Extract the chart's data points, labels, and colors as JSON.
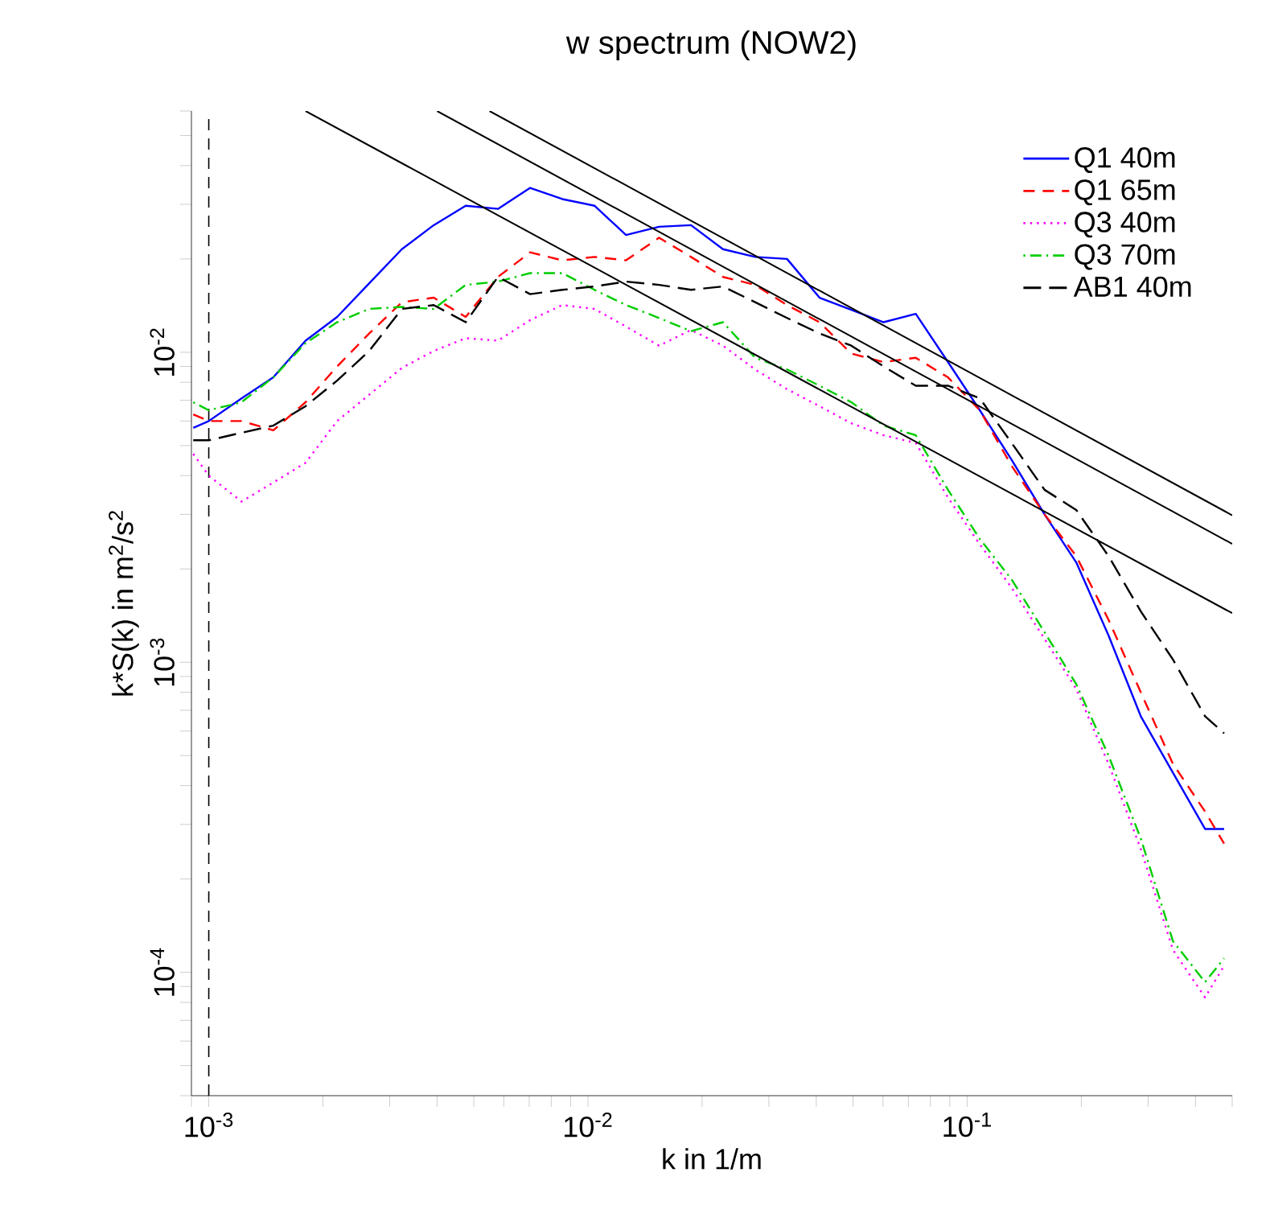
{
  "chart_data": {
    "type": "line",
    "title": "w spectrum (NOW2)",
    "xlabel": "k in 1/m",
    "ylabel": "k*S(k) in  m$^{2}$/s$^{2}$",
    "log": "xy",
    "grid": false,
    "legend": "top right",
    "marker": "none",
    "xlim": [
      0.0009,
      0.5
    ],
    "ylim": [
      4e-05,
      0.06
    ],
    "xticks": [
      {
        "value": 0.0009,
        "label": null
      },
      {
        "value": 0.001,
        "label": "10$^{-3}$"
      },
      {
        "value": 0.002,
        "label": null
      },
      {
        "value": 0.003,
        "label": null
      },
      {
        "value": 0.004,
        "label": null
      },
      {
        "value": 0.005,
        "label": null
      },
      {
        "value": 0.006,
        "label": null
      },
      {
        "value": 0.007,
        "label": null
      },
      {
        "value": 0.008,
        "label": null
      },
      {
        "value": 0.009,
        "label": null
      },
      {
        "value": 0.01,
        "label": "10$^{-2}$"
      },
      {
        "value": 0.02,
        "label": null
      },
      {
        "value": 0.03,
        "label": null
      },
      {
        "value": 0.04,
        "label": null
      },
      {
        "value": 0.05,
        "label": null
      },
      {
        "value": 0.06,
        "label": null
      },
      {
        "value": 0.07,
        "label": null
      },
      {
        "value": 0.08,
        "label": null
      },
      {
        "value": 0.09,
        "label": null
      },
      {
        "value": 0.1,
        "label": "10$^{-1}$"
      },
      {
        "value": 0.2,
        "label": null
      },
      {
        "value": 0.3,
        "label": null
      },
      {
        "value": 0.4,
        "label": null
      },
      {
        "value": 0.5,
        "label": null
      }
    ],
    "yticks": [
      {
        "value": 4e-05,
        "label": null
      },
      {
        "value": 5e-05,
        "label": null
      },
      {
        "value": 6e-05,
        "label": null
      },
      {
        "value": 7e-05,
        "label": null
      },
      {
        "value": 8e-05,
        "label": null
      },
      {
        "value": 9e-05,
        "label": null
      },
      {
        "value": 0.0001,
        "label": "10$^{-4}$"
      },
      {
        "value": 0.0002,
        "label": null
      },
      {
        "value": 0.0003,
        "label": null
      },
      {
        "value": 0.0004,
        "label": null
      },
      {
        "value": 0.0005,
        "label": null
      },
      {
        "value": 0.0006,
        "label": null
      },
      {
        "value": 0.0007,
        "label": null
      },
      {
        "value": 0.0008,
        "label": null
      },
      {
        "value": 0.0009,
        "label": null
      },
      {
        "value": 0.001,
        "label": "10$^{-3}$"
      },
      {
        "value": 0.002,
        "label": null
      },
      {
        "value": 0.003,
        "label": null
      },
      {
        "value": 0.004,
        "label": null
      },
      {
        "value": 0.005,
        "label": null
      },
      {
        "value": 0.006,
        "label": null
      },
      {
        "value": 0.007,
        "label": null
      },
      {
        "value": 0.008,
        "label": null
      },
      {
        "value": 0.009,
        "label": null
      },
      {
        "value": 0.01,
        "label": "10$^{-2}$"
      },
      {
        "value": 0.02,
        "label": null
      },
      {
        "value": 0.03,
        "label": null
      },
      {
        "value": 0.04,
        "label": null
      },
      {
        "value": 0.05,
        "label": null
      },
      {
        "value": 0.06,
        "label": null
      }
    ],
    "ref_lines": [
      {
        "axis": "x",
        "value": 0.001,
        "color": "#000000",
        "line_style": "dashed"
      }
    ],
    "x": [
      0.00091,
      0.001,
      0.00122,
      0.00148,
      0.0018,
      0.00218,
      0.00265,
      0.00323,
      0.00392,
      0.00476,
      0.00579,
      0.00704,
      0.00856,
      0.0104,
      0.0126,
      0.0154,
      0.0187,
      0.0227,
      0.0276,
      0.0335,
      0.0408,
      0.0495,
      0.0602,
      0.0732,
      0.089,
      0.108,
      0.131,
      0.16,
      0.194,
      0.236,
      0.287,
      0.349,
      0.424,
      0.476
    ],
    "series": [
      {
        "name": "Q1 40m",
        "color": "#0000ff",
        "line_style": "solid",
        "values": [
          0.0057,
          0.006,
          0.0071,
          0.0083,
          0.0109,
          0.013,
          0.0167,
          0.0215,
          0.0257,
          0.0297,
          0.029,
          0.0339,
          0.0312,
          0.0297,
          0.0239,
          0.0254,
          0.0257,
          0.0215,
          0.0203,
          0.02,
          0.015,
          0.0137,
          0.0125,
          0.0133,
          0.0093,
          0.0065,
          0.0045,
          0.003,
          0.0021,
          0.00122,
          0.00067,
          0.00044,
          0.00029,
          0.00029
        ]
      },
      {
        "name": "Q1 65m",
        "color": "#ff0000",
        "line_style": "dashed",
        "values": [
          0.0063,
          0.006,
          0.006,
          0.0056,
          0.0069,
          0.009,
          0.0115,
          0.0145,
          0.015,
          0.013,
          0.0175,
          0.021,
          0.0198,
          0.0203,
          0.0198,
          0.0234,
          0.0203,
          0.0175,
          0.0165,
          0.0142,
          0.0125,
          0.0099,
          0.0093,
          0.0096,
          0.0083,
          0.0065,
          0.0043,
          0.003,
          0.0022,
          0.00137,
          0.0008,
          0.00047,
          0.00033,
          0.00026
        ]
      },
      {
        "name": "Q3 40m",
        "color": "#ff00ff",
        "line_style": "dotted",
        "values": [
          0.0047,
          0.004,
          0.0033,
          0.0038,
          0.0044,
          0.006,
          0.0073,
          0.0089,
          0.0101,
          0.0111,
          0.0109,
          0.0127,
          0.0142,
          0.0138,
          0.0121,
          0.0105,
          0.0118,
          0.0105,
          0.0088,
          0.0076,
          0.0067,
          0.0059,
          0.0054,
          0.0051,
          0.0034,
          0.0024,
          0.00174,
          0.00119,
          0.00082,
          0.00047,
          0.00025,
          0.000118,
          8.3e-05,
          0.000105
        ]
      },
      {
        "name": "Q3 70m",
        "color": "#00cd00",
        "line_style": "dashdot",
        "values": [
          0.0069,
          0.0065,
          0.0069,
          0.0083,
          0.0107,
          0.0125,
          0.0138,
          0.014,
          0.0138,
          0.0165,
          0.0169,
          0.018,
          0.018,
          0.0159,
          0.0142,
          0.0129,
          0.0117,
          0.0125,
          0.0096,
          0.0088,
          0.0078,
          0.0069,
          0.0058,
          0.0054,
          0.0036,
          0.0025,
          0.00185,
          0.00125,
          0.00085,
          0.0005,
          0.00027,
          0.000126,
          9.3e-05,
          0.000111
        ]
      },
      {
        "name": "AB1 40m",
        "color": "#000000",
        "line_style": "longdash",
        "values": [
          0.0052,
          0.0052,
          0.0055,
          0.0058,
          0.0067,
          0.0081,
          0.0101,
          0.0138,
          0.0142,
          0.0125,
          0.0175,
          0.0154,
          0.0159,
          0.0163,
          0.0169,
          0.0165,
          0.0159,
          0.0163,
          0.0145,
          0.0129,
          0.0115,
          0.0105,
          0.009,
          0.0078,
          0.0078,
          0.0071,
          0.0051,
          0.0036,
          0.0031,
          0.0022,
          0.00146,
          0.00102,
          0.00067,
          0.00059
        ]
      },
      {
        "color": "#000000",
        "line_style": "solid",
        "x": [
          0.0055,
          0.5
        ],
        "values": [
          0.06,
          0.00298
        ]
      },
      {
        "color": "#000000",
        "line_style": "solid",
        "x": [
          0.004,
          0.5
        ],
        "values": [
          0.06,
          0.00241
        ]
      },
      {
        "color": "#000000",
        "line_style": "solid",
        "x": [
          0.0018,
          0.5
        ],
        "values": [
          0.06,
          0.00144
        ]
      }
    ]
  }
}
